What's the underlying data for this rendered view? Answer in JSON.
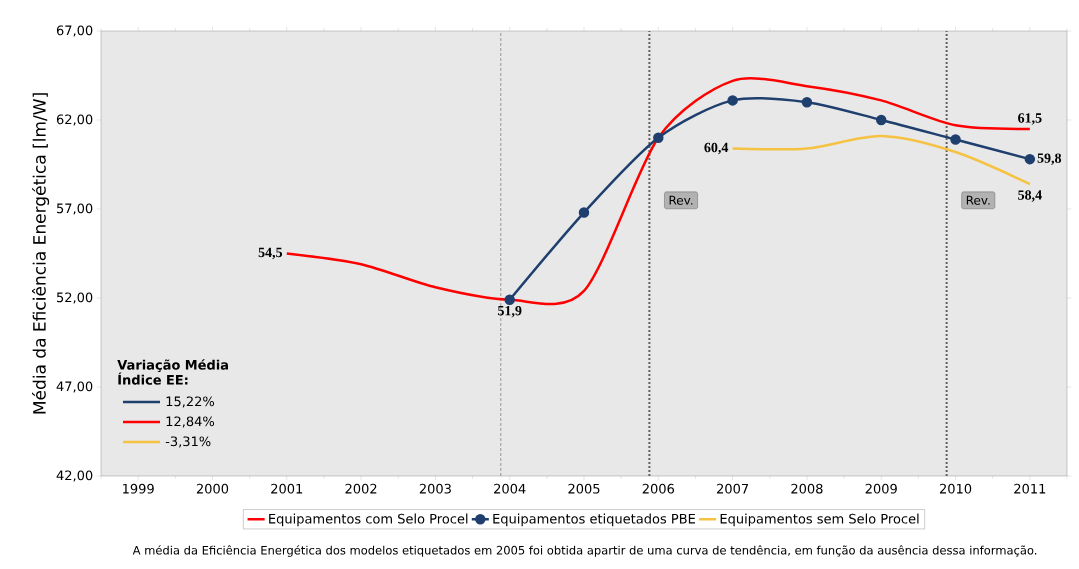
{
  "chart_data": {
    "type": "line",
    "ylabel": "Média da Eficiência Energética [lm/W]",
    "categories": [
      "1999",
      "2000",
      "2001",
      "2002",
      "2003",
      "2004",
      "2005",
      "2006",
      "2007",
      "2008",
      "2009",
      "2010",
      "2011"
    ],
    "ylim": [
      42,
      67
    ],
    "yticks": [
      {
        "value": 42,
        "label": "42,00"
      },
      {
        "value": 47,
        "label": "47,00"
      },
      {
        "value": 52,
        "label": "52,00"
      },
      {
        "value": 57,
        "label": "57,00"
      },
      {
        "value": 62,
        "label": "62,00"
      },
      {
        "value": 67,
        "label": "67,00"
      }
    ],
    "series": [
      {
        "name": "Equipamentos com Selo Procel",
        "color": "#ff0000",
        "marker": "none",
        "values": [
          null,
          null,
          54.5,
          53.9,
          52.6,
          51.9,
          52.4,
          61.0,
          64.2,
          63.9,
          63.1,
          61.7,
          61.5
        ],
        "value_labels": [
          null,
          null,
          "54,5",
          null,
          null,
          null,
          null,
          null,
          null,
          null,
          null,
          null,
          "61,5"
        ]
      },
      {
        "name": "Equipamentos etiquetados PBE",
        "color": "#1f3f6e",
        "marker": "circle",
        "values": [
          null,
          null,
          null,
          null,
          null,
          51.9,
          56.8,
          61.0,
          63.1,
          63.0,
          62.0,
          60.9,
          59.8
        ],
        "value_labels": [
          null,
          null,
          null,
          null,
          null,
          "51,9",
          null,
          null,
          null,
          null,
          null,
          null,
          "59,8"
        ]
      },
      {
        "name": "Equipamentos sem Selo Procel",
        "color": "#f5c242",
        "marker": "none",
        "values": [
          null,
          null,
          null,
          null,
          null,
          null,
          null,
          null,
          60.4,
          60.4,
          61.1,
          60.2,
          58.4
        ],
        "value_labels": [
          null,
          null,
          null,
          null,
          null,
          null,
          null,
          null,
          "60,4",
          null,
          null,
          null,
          "58,4"
        ]
      }
    ],
    "ref_lines": [
      {
        "axis": "x",
        "value": "2004",
        "label": null,
        "line_style": "dashed",
        "color": "#808080"
      },
      {
        "axis": "x",
        "value": "2006",
        "label": "Rev.",
        "line_style": "dotted",
        "color": "#606060"
      },
      {
        "axis": "x",
        "value": "2010",
        "label": "Rev.",
        "line_style": "dotted",
        "color": "#606060"
      }
    ],
    "legend": "bottom",
    "annotations": [
      "Variação Média Índice EE:",
      "15,22%",
      "12,84%",
      "-3,31%",
      "A média da Eficiência Energética dos modelos etiquetados em 2005 foi obtida apartir de uma curva de tendência, em função da ausência dessa informação."
    ]
  }
}
